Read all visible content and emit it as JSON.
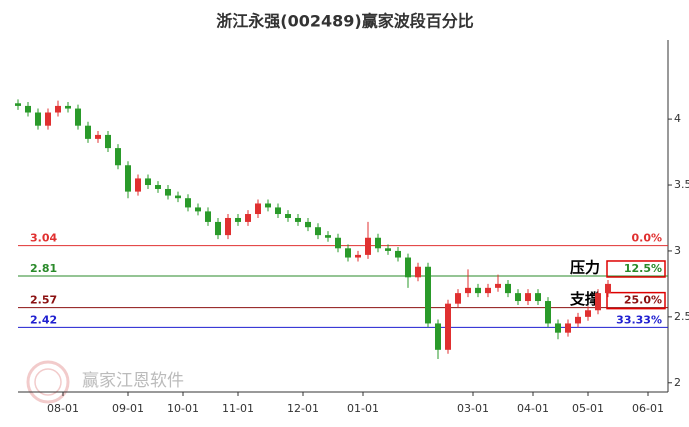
{
  "chart_data": {
    "type": "candlestick",
    "title": "浙江永强(002489)赢家波段百分比",
    "watermark": "赢家江恩软件",
    "up_color": "#e03030",
    "down_color": "#2a9a2a",
    "xlim": [
      0,
      130
    ],
    "ylim": [
      1.93,
      4.6
    ],
    "yticks": [
      2,
      2.5,
      3,
      3.5,
      4
    ],
    "xticks": [
      {
        "value": 9,
        "label": "08-01"
      },
      {
        "value": 22,
        "label": "09-01"
      },
      {
        "value": 33,
        "label": "10-01"
      },
      {
        "value": 44,
        "label": "11-01"
      },
      {
        "value": 57,
        "label": "12-01"
      },
      {
        "value": 69,
        "label": "01-01"
      },
      {
        "value": 91,
        "label": "03-01"
      },
      {
        "value": 103,
        "label": "04-01"
      },
      {
        "value": 114,
        "label": "05-01"
      },
      {
        "value": 126,
        "label": "06-01"
      }
    ],
    "x": [
      0,
      2,
      4,
      6,
      8,
      10,
      12,
      14,
      16,
      18,
      20,
      22,
      24,
      26,
      28,
      30,
      32,
      34,
      36,
      38,
      40,
      42,
      44,
      46,
      48,
      50,
      52,
      54,
      56,
      58,
      60,
      62,
      64,
      66,
      68,
      70,
      72,
      74,
      76,
      78,
      80,
      82,
      84,
      86,
      88,
      90,
      92,
      94,
      96,
      98,
      100,
      102,
      104,
      106,
      108,
      110,
      112,
      114,
      116,
      118
    ],
    "ohlc": [
      [
        4.12,
        4.15,
        4.07,
        4.1
      ],
      [
        4.1,
        4.13,
        4.02,
        4.05
      ],
      [
        4.05,
        4.08,
        3.92,
        3.95
      ],
      [
        3.95,
        4.08,
        3.92,
        4.05
      ],
      [
        4.05,
        4.14,
        4.02,
        4.1
      ],
      [
        4.1,
        4.13,
        4.05,
        4.08
      ],
      [
        4.08,
        4.11,
        3.92,
        3.95
      ],
      [
        3.95,
        3.98,
        3.82,
        3.85
      ],
      [
        3.85,
        3.91,
        3.82,
        3.88
      ],
      [
        3.88,
        3.91,
        3.75,
        3.78
      ],
      [
        3.78,
        3.81,
        3.62,
        3.65
      ],
      [
        3.65,
        3.68,
        3.4,
        3.45
      ],
      [
        3.45,
        3.58,
        3.42,
        3.55
      ],
      [
        3.55,
        3.58,
        3.47,
        3.5
      ],
      [
        3.5,
        3.53,
        3.44,
        3.47
      ],
      [
        3.47,
        3.5,
        3.39,
        3.42
      ],
      [
        3.42,
        3.45,
        3.37,
        3.4
      ],
      [
        3.4,
        3.43,
        3.3,
        3.33
      ],
      [
        3.33,
        3.36,
        3.27,
        3.3
      ],
      [
        3.3,
        3.33,
        3.19,
        3.22
      ],
      [
        3.22,
        3.25,
        3.09,
        3.12
      ],
      [
        3.12,
        3.28,
        3.09,
        3.25
      ],
      [
        3.25,
        3.28,
        3.19,
        3.22
      ],
      [
        3.22,
        3.31,
        3.19,
        3.28
      ],
      [
        3.28,
        3.39,
        3.25,
        3.36
      ],
      [
        3.36,
        3.39,
        3.3,
        3.33
      ],
      [
        3.33,
        3.36,
        3.25,
        3.28
      ],
      [
        3.28,
        3.31,
        3.22,
        3.25
      ],
      [
        3.25,
        3.28,
        3.19,
        3.22
      ],
      [
        3.22,
        3.25,
        3.15,
        3.18
      ],
      [
        3.18,
        3.21,
        3.09,
        3.12
      ],
      [
        3.12,
        3.15,
        3.07,
        3.1
      ],
      [
        3.1,
        3.13,
        2.99,
        3.02
      ],
      [
        3.02,
        3.05,
        2.92,
        2.95
      ],
      [
        2.95,
        3.0,
        2.92,
        2.97
      ],
      [
        2.97,
        3.22,
        2.94,
        3.1
      ],
      [
        3.1,
        3.13,
        2.99,
        3.02
      ],
      [
        3.02,
        3.05,
        2.97,
        3.0
      ],
      [
        3.0,
        3.03,
        2.92,
        2.95
      ],
      [
        2.95,
        2.98,
        2.72,
        2.8
      ],
      [
        2.8,
        2.91,
        2.77,
        2.88
      ],
      [
        2.88,
        2.91,
        2.42,
        2.45
      ],
      [
        2.45,
        2.48,
        2.18,
        2.25
      ],
      [
        2.25,
        2.63,
        2.22,
        2.6
      ],
      [
        2.6,
        2.71,
        2.57,
        2.68
      ],
      [
        2.68,
        2.86,
        2.65,
        2.72
      ],
      [
        2.72,
        2.75,
        2.65,
        2.68
      ],
      [
        2.68,
        2.75,
        2.65,
        2.72
      ],
      [
        2.72,
        2.82,
        2.69,
        2.75
      ],
      [
        2.75,
        2.78,
        2.65,
        2.68
      ],
      [
        2.68,
        2.71,
        2.59,
        2.62
      ],
      [
        2.62,
        2.71,
        2.59,
        2.68
      ],
      [
        2.68,
        2.71,
        2.59,
        2.62
      ],
      [
        2.62,
        2.65,
        2.42,
        2.45
      ],
      [
        2.45,
        2.48,
        2.33,
        2.38
      ],
      [
        2.38,
        2.48,
        2.35,
        2.45
      ],
      [
        2.45,
        2.53,
        2.42,
        2.5
      ],
      [
        2.5,
        2.58,
        2.47,
        2.55
      ],
      [
        2.55,
        2.71,
        2.52,
        2.68
      ],
      [
        2.68,
        2.78,
        2.65,
        2.75
      ]
    ],
    "levels": [
      {
        "value": 3.04,
        "pct": "0.0%",
        "color": "#e03030"
      },
      {
        "value": 2.81,
        "pct": "12.5%",
        "color": "#2a8a2a",
        "note": "压力"
      },
      {
        "value": 2.57,
        "pct": "25.0%",
        "color": "#8b1010",
        "note": "支撑"
      },
      {
        "value": 2.42,
        "pct": "33.33%",
        "color": "#1f1fd0"
      }
    ]
  }
}
